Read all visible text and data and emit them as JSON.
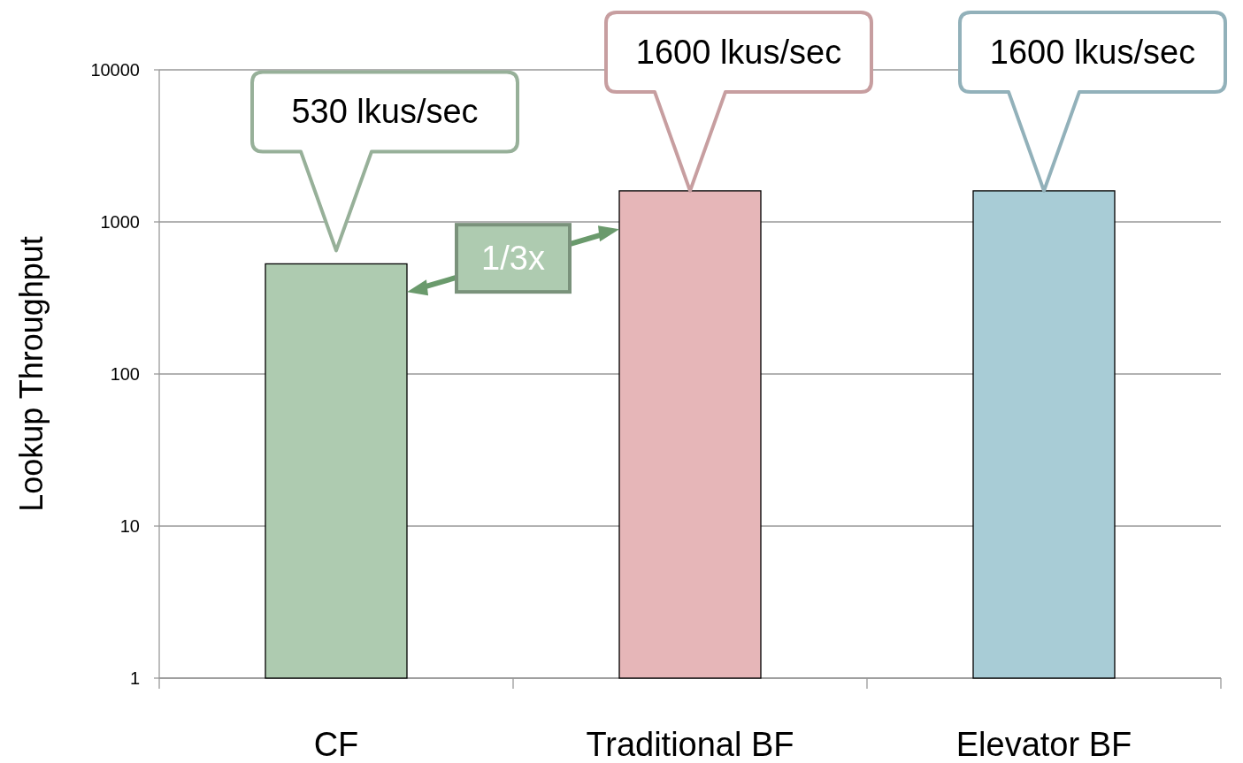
{
  "chart_data": {
    "type": "bar",
    "ylabel": "Lookup Throughput",
    "categories": [
      "CF",
      "Traditional BF",
      "Elevator BF"
    ],
    "values": [
      530,
      1600,
      1600
    ],
    "colors": [
      "#aecbb0",
      "#e6b6b8",
      "#a8ccd6"
    ],
    "log": true,
    "ylim": [
      1,
      10000
    ],
    "yticks": [
      1,
      10,
      100,
      1000,
      10000
    ],
    "grid": "y",
    "annotations": [
      "530 lkus/sec",
      "1600 lkus/sec",
      "1600 lkus/sec",
      "1/3x"
    ]
  }
}
